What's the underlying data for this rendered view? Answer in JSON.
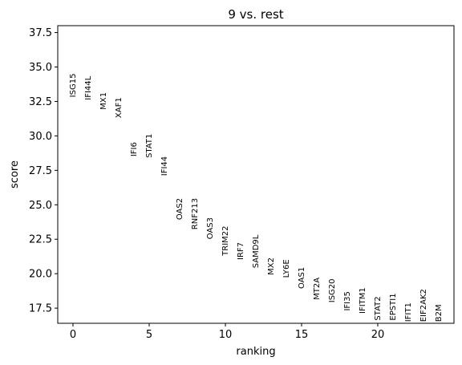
{
  "chart_data": {
    "type": "scatter",
    "title": "9 vs. rest",
    "xlabel": "ranking",
    "ylabel": "score",
    "xlim": [
      -1,
      25
    ],
    "ylim": [
      16.4,
      38.0
    ],
    "xticks": [
      0,
      5,
      10,
      15,
      20
    ],
    "yticks": [
      17.5,
      20.0,
      22.5,
      25.0,
      27.5,
      30.0,
      32.5,
      35.0,
      37.5
    ],
    "ytick_labels": [
      "17.5",
      "20.0",
      "22.5",
      "25.0",
      "27.5",
      "30.0",
      "32.5",
      "35.0",
      "37.5"
    ],
    "grid": false,
    "points": [
      {
        "rank": 0,
        "gene": "ISG15",
        "score": 32.8
      },
      {
        "rank": 1,
        "gene": "IFI44L",
        "score": 32.6
      },
      {
        "rank": 2,
        "gene": "MX1",
        "score": 31.9
      },
      {
        "rank": 3,
        "gene": "XAF1",
        "score": 31.3
      },
      {
        "rank": 4,
        "gene": "IFI6",
        "score": 28.5
      },
      {
        "rank": 5,
        "gene": "STAT1",
        "score": 28.4
      },
      {
        "rank": 6,
        "gene": "IFI44",
        "score": 27.1
      },
      {
        "rank": 7,
        "gene": "OAS2",
        "score": 23.9
      },
      {
        "rank": 8,
        "gene": "RNF213",
        "score": 23.2
      },
      {
        "rank": 9,
        "gene": "OAS3",
        "score": 22.5
      },
      {
        "rank": 10,
        "gene": "TRIM22",
        "score": 21.3
      },
      {
        "rank": 11,
        "gene": "IRF7",
        "score": 21.0
      },
      {
        "rank": 12,
        "gene": "SAMD9L",
        "score": 20.4
      },
      {
        "rank": 13,
        "gene": "MX2",
        "score": 19.9
      },
      {
        "rank": 14,
        "gene": "LY6E",
        "score": 19.7
      },
      {
        "rank": 15,
        "gene": "OAS1",
        "score": 18.9
      },
      {
        "rank": 16,
        "gene": "MT2A",
        "score": 18.1
      },
      {
        "rank": 17,
        "gene": "ISG20",
        "score": 17.9
      },
      {
        "rank": 18,
        "gene": "IFI35",
        "score": 17.3
      },
      {
        "rank": 19,
        "gene": "IFITM1",
        "score": 17.1
      },
      {
        "rank": 20,
        "gene": "STAT2",
        "score": 16.6
      },
      {
        "rank": 21,
        "gene": "EPSTI1",
        "score": 16.6
      },
      {
        "rank": 22,
        "gene": "IFIT1",
        "score": 16.5
      },
      {
        "rank": 23,
        "gene": "EIF2AK2",
        "score": 16.5
      },
      {
        "rank": 24,
        "gene": "B2M",
        "score": 16.5
      }
    ]
  }
}
